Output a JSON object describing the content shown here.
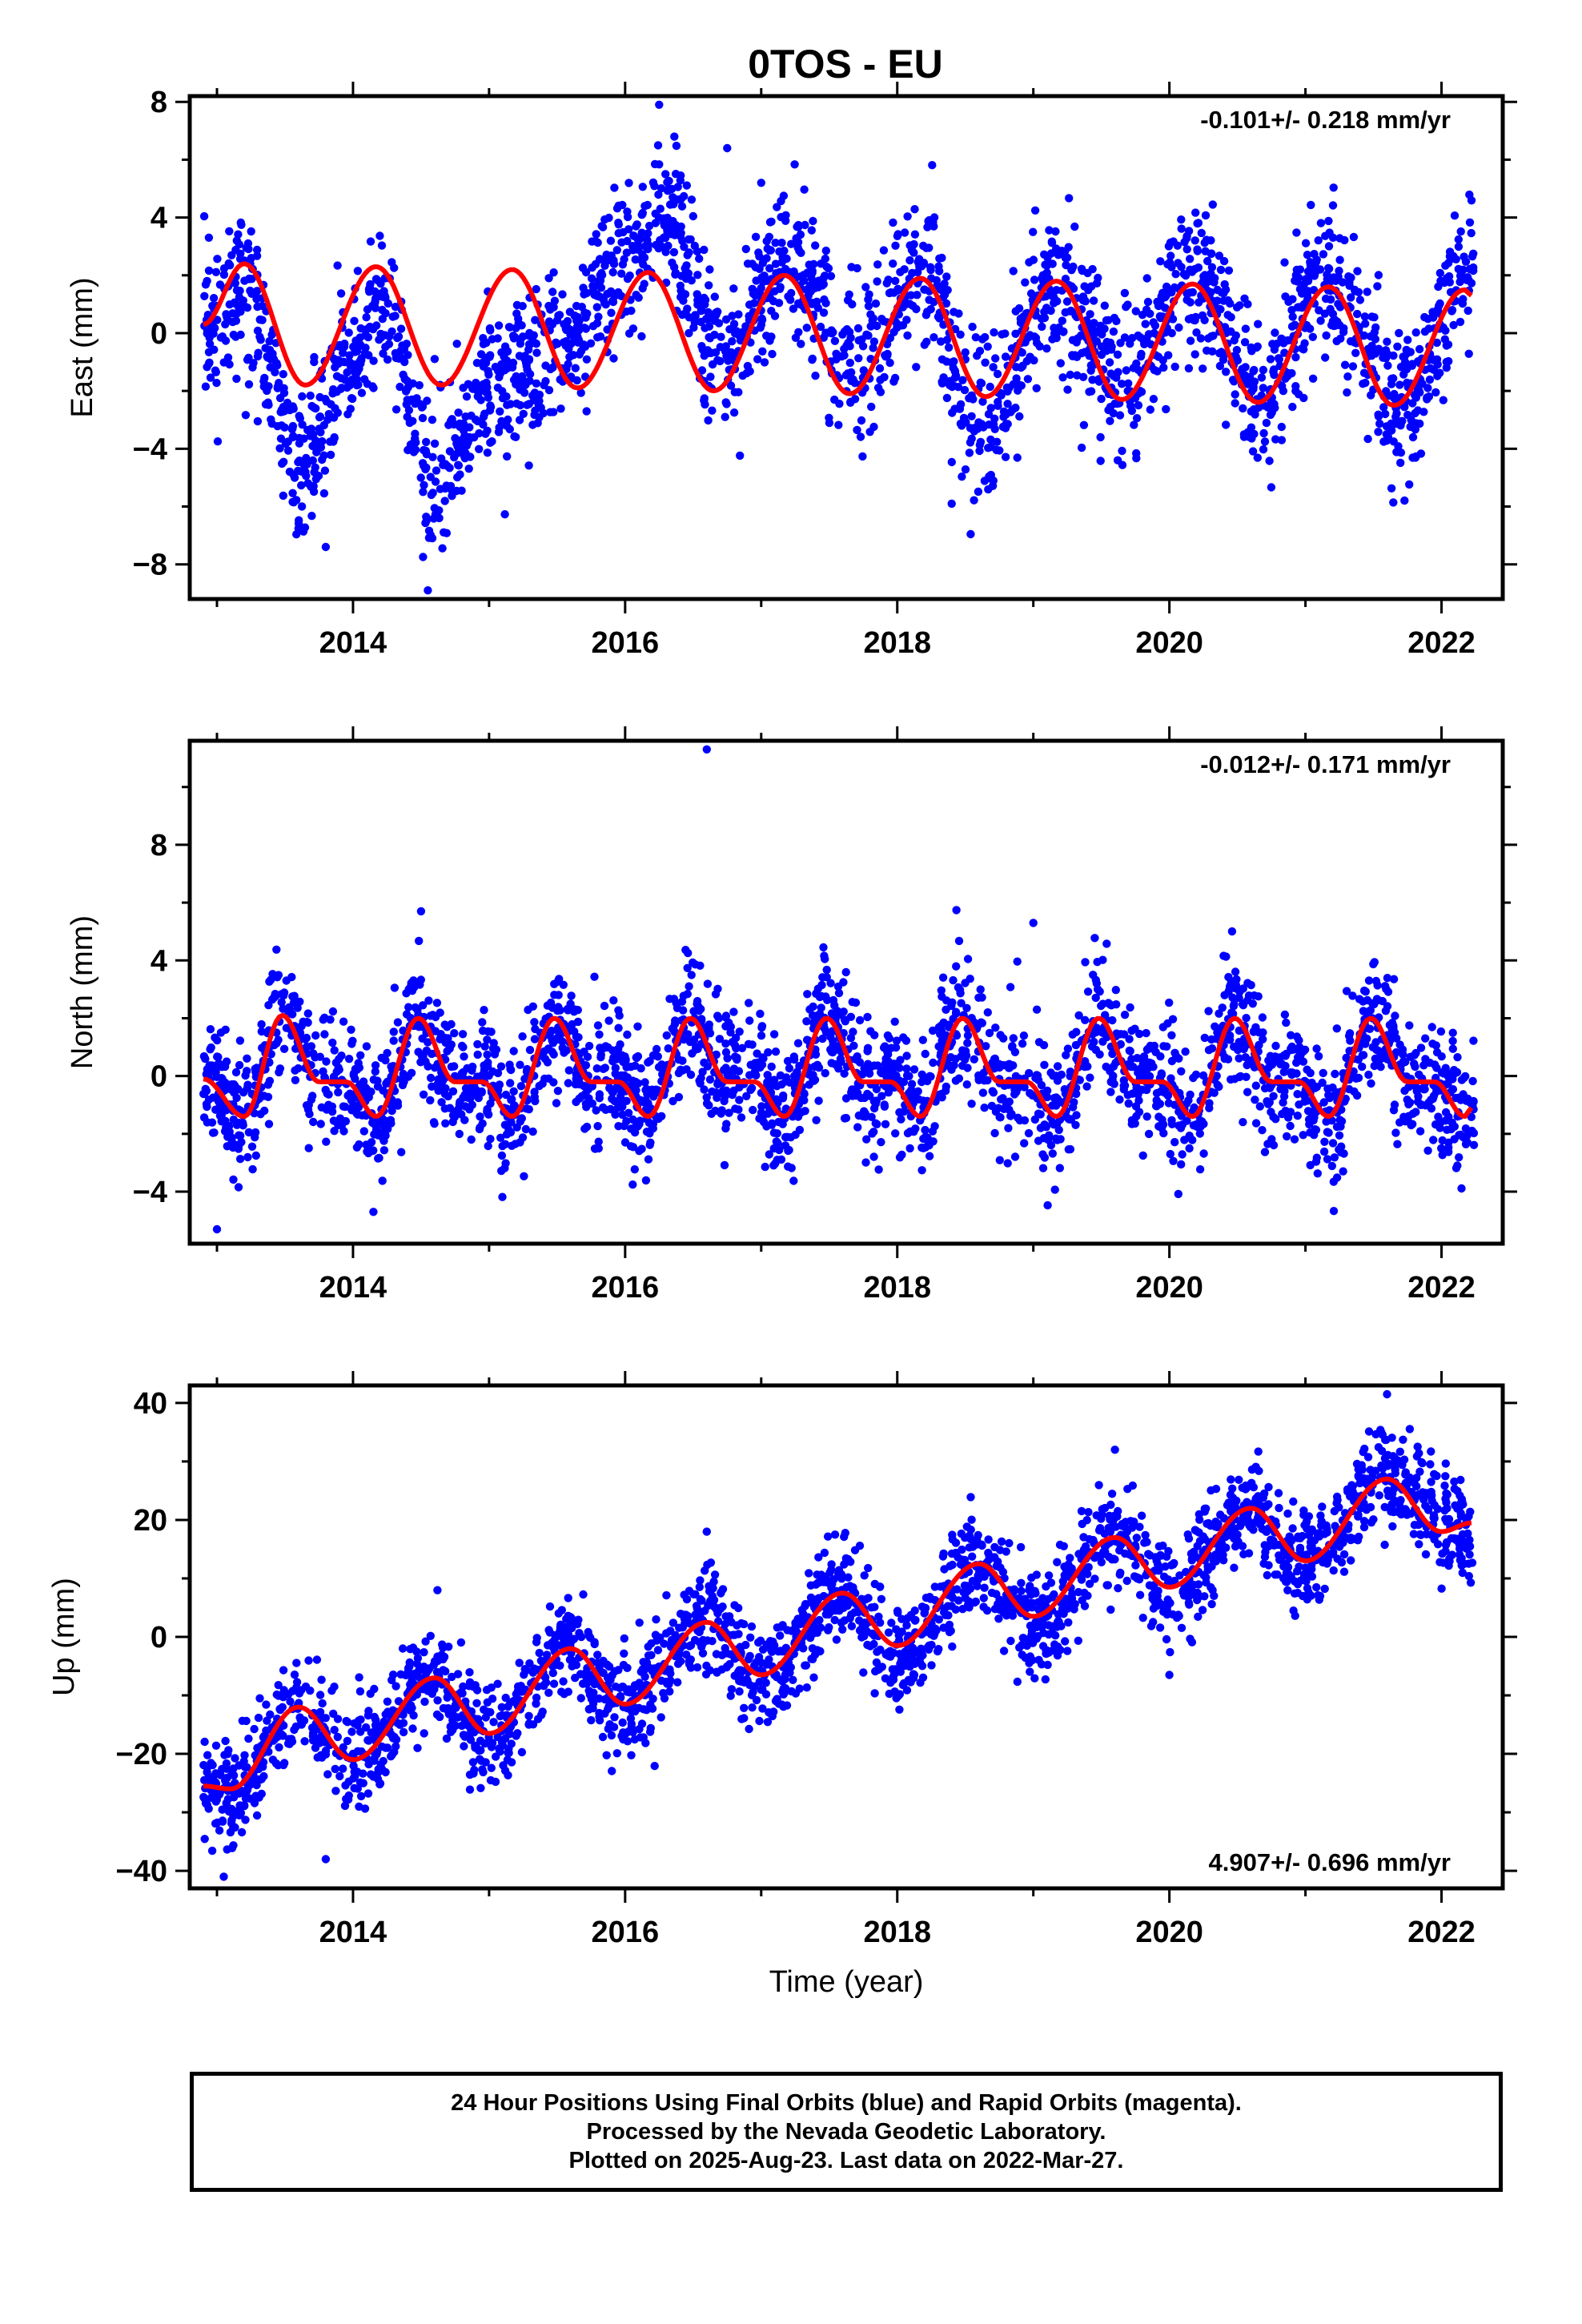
{
  "title": "0TOS - EU",
  "colors": {
    "points": "#0000ff",
    "fit": "#ff0000",
    "axes": "#000000"
  },
  "xlabel": "Time (year)",
  "x_ticks": [
    "2014",
    "2016",
    "2018",
    "2020",
    "2022"
  ],
  "footer": {
    "line1": "24 Hour Positions Using Final Orbits (blue) and Rapid Orbits (magenta).",
    "line2": "Processed by the Nevada Geodetic Laboratory.",
    "line3": "Plotted on 2025-Aug-23. Last data on 2022-Mar-27."
  },
  "chart_data": [
    {
      "type": "scatter",
      "ylabel": "East (mm)",
      "rate_label": "-0.101+/- 0.218 mm/yr",
      "xlim": [
        2012.8,
        2022.45
      ],
      "ylim": [
        -9.2,
        8.2
      ],
      "yticks": [
        -8,
        -4,
        0,
        4,
        8
      ],
      "xticks": [
        2014,
        2016,
        2018,
        2020,
        2022
      ],
      "fit_curve": [
        [
          2012.9,
          0.3
        ],
        [
          2013.2,
          2.4
        ],
        [
          2013.65,
          -1.8
        ],
        [
          2014.17,
          2.3
        ],
        [
          2014.65,
          -1.8
        ],
        [
          2015.17,
          2.2
        ],
        [
          2015.65,
          -1.9
        ],
        [
          2016.17,
          2.1
        ],
        [
          2016.65,
          -2.0
        ],
        [
          2017.17,
          2.0
        ],
        [
          2017.65,
          -2.1
        ],
        [
          2018.17,
          1.9
        ],
        [
          2018.65,
          -2.2
        ],
        [
          2019.17,
          1.8
        ],
        [
          2019.65,
          -2.3
        ],
        [
          2020.17,
          1.7
        ],
        [
          2020.65,
          -2.4
        ],
        [
          2021.17,
          1.6
        ],
        [
          2021.65,
          -2.5
        ],
        [
          2022.17,
          1.5
        ],
        [
          2022.22,
          1.3
        ]
      ],
      "scatter_trend": [
        [
          2012.9,
          0.5
        ],
        [
          2013.2,
          1.5
        ],
        [
          2013.6,
          -4.5
        ],
        [
          2014.0,
          -1.0
        ],
        [
          2014.2,
          1.0
        ],
        [
          2014.6,
          -5.0
        ],
        [
          2015.0,
          -2.0
        ],
        [
          2015.5,
          -1.0
        ],
        [
          2016.0,
          2.5
        ],
        [
          2016.3,
          4.0
        ],
        [
          2016.7,
          -1.0
        ],
        [
          2017.2,
          2.5
        ],
        [
          2017.7,
          -1.0
        ],
        [
          2018.2,
          2.0
        ],
        [
          2018.6,
          -3.5
        ],
        [
          2019.1,
          1.5
        ],
        [
          2019.7,
          -1.5
        ],
        [
          2020.2,
          2.0
        ],
        [
          2020.7,
          -2.5
        ],
        [
          2021.1,
          2.0
        ],
        [
          2021.7,
          -2.5
        ],
        [
          2022.2,
          2.0
        ]
      ],
      "scatter_spread": 1.3,
      "outliers": [
        [
          2016.25,
          7.9
        ],
        [
          2016.75,
          6.4
        ],
        [
          2014.55,
          -8.9
        ],
        [
          2013.8,
          -7.4
        ],
        [
          2018.4,
          -5.9
        ],
        [
          2017.0,
          5.2
        ]
      ]
    },
    {
      "type": "scatter",
      "ylabel": "North (mm)",
      "rate_label": "-0.012+/- 0.171 mm/yr",
      "xlim": [
        2012.8,
        2022.45
      ],
      "ylim": [
        -5.8,
        11.6
      ],
      "yticks": [
        -4,
        0,
        4,
        8
      ],
      "xticks": [
        2014,
        2016,
        2018,
        2020,
        2022
      ],
      "fit_curve": [
        [
          2012.9,
          -0.1
        ],
        [
          2013.2,
          -1.4
        ],
        [
          2013.48,
          2.1
        ],
        [
          2013.75,
          -0.2
        ],
        [
          2013.95,
          -0.2
        ],
        [
          2014.17,
          -1.4
        ],
        [
          2014.48,
          2.0
        ],
        [
          2014.75,
          -0.2
        ],
        [
          2014.95,
          -0.2
        ],
        [
          2015.17,
          -1.4
        ],
        [
          2015.48,
          2.0
        ],
        [
          2015.75,
          -0.2
        ],
        [
          2015.95,
          -0.2
        ],
        [
          2016.17,
          -1.4
        ],
        [
          2016.48,
          2.0
        ],
        [
          2016.75,
          -0.2
        ],
        [
          2016.95,
          -0.2
        ],
        [
          2017.17,
          -1.4
        ],
        [
          2017.48,
          2.0
        ],
        [
          2017.75,
          -0.2
        ],
        [
          2017.95,
          -0.2
        ],
        [
          2018.17,
          -1.4
        ],
        [
          2018.48,
          2.0
        ],
        [
          2018.75,
          -0.2
        ],
        [
          2018.95,
          -0.2
        ],
        [
          2019.17,
          -1.4
        ],
        [
          2019.48,
          2.0
        ],
        [
          2019.75,
          -0.2
        ],
        [
          2019.95,
          -0.2
        ],
        [
          2020.17,
          -1.4
        ],
        [
          2020.48,
          2.0
        ],
        [
          2020.75,
          -0.2
        ],
        [
          2020.95,
          -0.2
        ],
        [
          2021.17,
          -1.4
        ],
        [
          2021.48,
          2.0
        ],
        [
          2021.75,
          -0.2
        ],
        [
          2021.95,
          -0.2
        ],
        [
          2022.17,
          -1.4
        ],
        [
          2022.22,
          -1.1
        ]
      ],
      "scatter_spread": 1.1,
      "outliers": [
        [
          2016.6,
          11.3
        ],
        [
          2013.0,
          -5.3
        ],
        [
          2014.15,
          -4.7
        ],
        [
          2019.0,
          5.3
        ],
        [
          2014.5,
          5.7
        ]
      ]
    },
    {
      "type": "scatter",
      "ylabel": "Up (mm)",
      "rate_label": "4.907+/- 0.696 mm/yr",
      "xlim": [
        2012.8,
        2022.45
      ],
      "ylim": [
        -43,
        43
      ],
      "yticks": [
        -40,
        -20,
        0,
        20,
        40
      ],
      "xticks": [
        2014,
        2016,
        2018,
        2020,
        2022
      ],
      "fit_curve": [
        [
          2012.9,
          -25.5
        ],
        [
          2013.1,
          -26.0
        ],
        [
          2013.6,
          -12.0
        ],
        [
          2014.0,
          -21.0
        ],
        [
          2014.6,
          -7.0
        ],
        [
          2015.0,
          -16.5
        ],
        [
          2015.6,
          -2.0
        ],
        [
          2016.0,
          -11.5
        ],
        [
          2016.6,
          2.5
        ],
        [
          2017.0,
          -6.5
        ],
        [
          2017.6,
          7.5
        ],
        [
          2018.0,
          -1.5
        ],
        [
          2018.6,
          12.5
        ],
        [
          2019.0,
          3.5
        ],
        [
          2019.6,
          17.0
        ],
        [
          2020.0,
          8.5
        ],
        [
          2020.6,
          22.0
        ],
        [
          2021.0,
          13.0
        ],
        [
          2021.6,
          27.0
        ],
        [
          2022.0,
          18.0
        ],
        [
          2022.22,
          19.5
        ]
      ],
      "scatter_trend": [
        [
          2012.9,
          -25.0
        ],
        [
          2013.1,
          -28.0
        ],
        [
          2013.6,
          -12.0
        ],
        [
          2014.0,
          -21.0
        ],
        [
          2014.6,
          -7.0
        ],
        [
          2015.0,
          -17.0
        ],
        [
          2015.6,
          -2.0
        ],
        [
          2016.0,
          -12.0
        ],
        [
          2016.6,
          2.5
        ],
        [
          2017.0,
          -8.0
        ],
        [
          2017.6,
          7.5
        ],
        [
          2018.0,
          -4.0
        ],
        [
          2018.6,
          12.5
        ],
        [
          2019.0,
          2.0
        ],
        [
          2019.6,
          17.0
        ],
        [
          2020.0,
          8.0
        ],
        [
          2020.6,
          22.0
        ],
        [
          2021.0,
          13.0
        ],
        [
          2021.6,
          28.0
        ],
        [
          2022.0,
          20.0
        ],
        [
          2022.22,
          18.0
        ]
      ],
      "scatter_spread": 4.2,
      "outliers": [
        [
          2021.6,
          41.5
        ],
        [
          2013.05,
          -41.0
        ],
        [
          2016.6,
          18.0
        ],
        [
          2019.6,
          32.0
        ],
        [
          2013.8,
          -38.0
        ],
        [
          2020.0,
          -6.5
        ]
      ]
    }
  ]
}
